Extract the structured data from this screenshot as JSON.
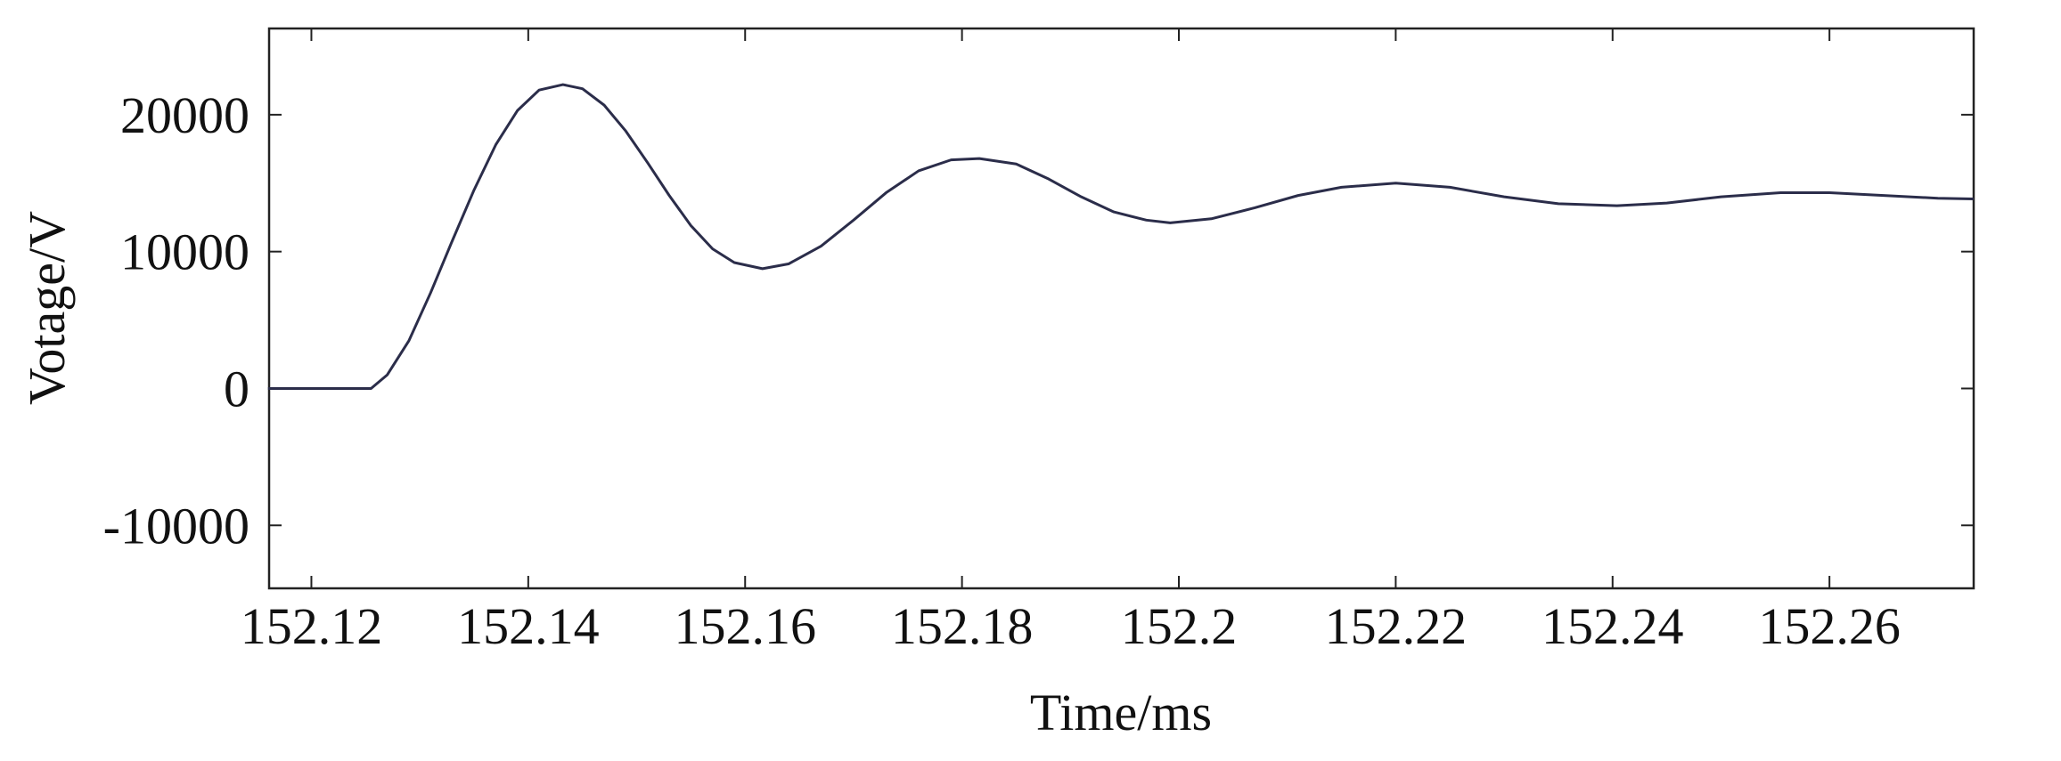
{
  "chart_data": {
    "type": "line",
    "x_label": "Time/ms",
    "y_label": "Votage/V",
    "x": [
      152.116,
      152.12,
      152.1255,
      152.127,
      152.129,
      152.131,
      152.133,
      152.135,
      152.137,
      152.139,
      152.141,
      152.1432,
      152.145,
      152.147,
      152.149,
      152.151,
      152.153,
      152.155,
      152.157,
      152.159,
      152.1616,
      152.164,
      152.167,
      152.17,
      152.173,
      152.176,
      152.179,
      152.1816,
      152.185,
      152.188,
      152.191,
      152.194,
      152.197,
      152.1992,
      152.203,
      152.207,
      152.211,
      152.215,
      152.22,
      152.225,
      152.23,
      152.235,
      152.2404,
      152.245,
      152.25,
      152.2555,
      152.26,
      152.265,
      152.27,
      152.2733
    ],
    "series": [
      {
        "color": "#2b2d4a",
        "values": [
          0,
          0,
          0,
          1000,
          3500,
          7000,
          10800,
          14500,
          17800,
          20300,
          21800,
          22200,
          21900,
          20700,
          18800,
          16500,
          14100,
          11900,
          10200,
          9200,
          8750,
          9100,
          10400,
          12300,
          14300,
          15900,
          16700,
          16800,
          16400,
          15300,
          14000,
          12900,
          12300,
          12100,
          12400,
          13200,
          14100,
          14700,
          15000,
          14700,
          14000,
          13500,
          13350,
          13550,
          14000,
          14300,
          14300,
          14100,
          13900,
          13850
        ]
      }
    ],
    "xlim": [
      152.1161,
      152.2733
    ],
    "xticks": [
      152.12,
      152.14,
      152.16,
      152.18,
      152.2,
      152.22,
      152.24,
      152.26
    ],
    "ylim": [
      -14600,
      26300
    ],
    "yticks": [
      -10000,
      0,
      10000,
      20000
    ]
  }
}
